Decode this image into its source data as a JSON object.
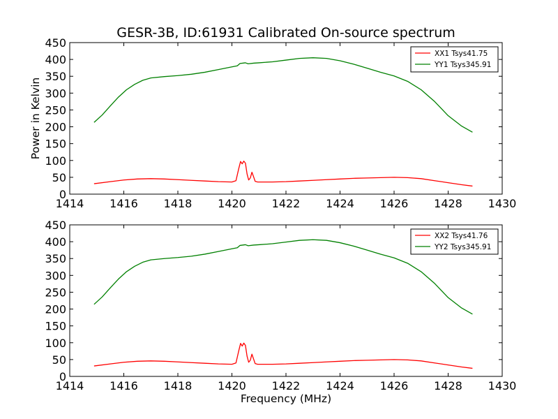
{
  "chart_data": [
    {
      "type": "line",
      "title": "GESR-3B, ID:61931 Calibrated On-source spectrum",
      "xlabel": "",
      "ylabel": "Power in Kelvin",
      "xlim": [
        1414,
        1430
      ],
      "ylim": [
        0,
        450
      ],
      "xticks": [
        "1414",
        "1416",
        "1418",
        "1420",
        "1422",
        "1424",
        "1426",
        "1428",
        "1430"
      ],
      "yticks": [
        "0",
        "50",
        "100",
        "150",
        "200",
        "250",
        "300",
        "350",
        "400",
        "450"
      ],
      "legend_position": "top-right",
      "series": [
        {
          "name": "XX1 Tsys41.75",
          "color": "#ff0000",
          "points": [
            [
              1414.9,
              31
            ],
            [
              1415.5,
              37
            ],
            [
              1416.0,
              42
            ],
            [
              1416.5,
              45
            ],
            [
              1417.0,
              46
            ],
            [
              1417.5,
              45
            ],
            [
              1418.0,
              43
            ],
            [
              1418.5,
              41
            ],
            [
              1419.0,
              39
            ],
            [
              1419.5,
              37
            ],
            [
              1420.0,
              36
            ],
            [
              1420.15,
              40
            ],
            [
              1420.25,
              75
            ],
            [
              1420.32,
              97
            ],
            [
              1420.38,
              90
            ],
            [
              1420.44,
              98
            ],
            [
              1420.5,
              92
            ],
            [
              1420.56,
              60
            ],
            [
              1420.62,
              42
            ],
            [
              1420.68,
              48
            ],
            [
              1420.74,
              65
            ],
            [
              1420.8,
              52
            ],
            [
              1420.86,
              38
            ],
            [
              1420.95,
              36
            ],
            [
              1421.5,
              36
            ],
            [
              1422.0,
              37
            ],
            [
              1422.5,
              39
            ],
            [
              1423.0,
              41
            ],
            [
              1423.5,
              43
            ],
            [
              1424.0,
              45
            ],
            [
              1424.5,
              47
            ],
            [
              1425.0,
              48
            ],
            [
              1425.5,
              49
            ],
            [
              1426.0,
              50
            ],
            [
              1426.5,
              49
            ],
            [
              1427.0,
              46
            ],
            [
              1427.5,
              40
            ],
            [
              1428.0,
              34
            ],
            [
              1428.5,
              28
            ],
            [
              1428.9,
              24
            ]
          ]
        },
        {
          "name": "YY1 Tsys345.91",
          "color": "#008000",
          "points": [
            [
              1414.9,
              213
            ],
            [
              1415.2,
              235
            ],
            [
              1415.5,
              262
            ],
            [
              1415.8,
              288
            ],
            [
              1416.1,
              310
            ],
            [
              1416.4,
              326
            ],
            [
              1416.7,
              338
            ],
            [
              1417.0,
              345
            ],
            [
              1417.5,
              349
            ],
            [
              1418.0,
              352
            ],
            [
              1418.5,
              356
            ],
            [
              1419.0,
              362
            ],
            [
              1419.5,
              370
            ],
            [
              1420.0,
              378
            ],
            [
              1420.2,
              381
            ],
            [
              1420.3,
              388
            ],
            [
              1420.5,
              390
            ],
            [
              1420.6,
              387
            ],
            [
              1420.8,
              389
            ],
            [
              1421.0,
              390
            ],
            [
              1421.5,
              393
            ],
            [
              1422.0,
              398
            ],
            [
              1422.5,
              403
            ],
            [
              1423.0,
              405
            ],
            [
              1423.5,
              403
            ],
            [
              1424.0,
              396
            ],
            [
              1424.5,
              386
            ],
            [
              1425.0,
              374
            ],
            [
              1425.5,
              362
            ],
            [
              1426.0,
              351
            ],
            [
              1426.5,
              335
            ],
            [
              1427.0,
              310
            ],
            [
              1427.5,
              275
            ],
            [
              1428.0,
              233
            ],
            [
              1428.5,
              202
            ],
            [
              1428.9,
              184
            ]
          ]
        }
      ]
    },
    {
      "type": "line",
      "title": "",
      "xlabel": "Frequency (MHz)",
      "ylabel": "",
      "xlim": [
        1414,
        1430
      ],
      "ylim": [
        0,
        450
      ],
      "xticks": [
        "1414",
        "1416",
        "1418",
        "1420",
        "1422",
        "1424",
        "1426",
        "1428",
        "1430"
      ],
      "yticks": [
        "0",
        "50",
        "100",
        "150",
        "200",
        "250",
        "300",
        "350",
        "400",
        "450"
      ],
      "legend_position": "top-right",
      "series": [
        {
          "name": "XX2 Tsys41.76",
          "color": "#ff0000",
          "points": [
            [
              1414.9,
              31
            ],
            [
              1415.5,
              37
            ],
            [
              1416.0,
              42
            ],
            [
              1416.5,
              45
            ],
            [
              1417.0,
              46
            ],
            [
              1417.5,
              45
            ],
            [
              1418.0,
              43
            ],
            [
              1418.5,
              41
            ],
            [
              1419.0,
              39
            ],
            [
              1419.5,
              37
            ],
            [
              1420.0,
              36
            ],
            [
              1420.15,
              40
            ],
            [
              1420.25,
              75
            ],
            [
              1420.32,
              98
            ],
            [
              1420.38,
              90
            ],
            [
              1420.44,
              99
            ],
            [
              1420.5,
              92
            ],
            [
              1420.56,
              60
            ],
            [
              1420.62,
              42
            ],
            [
              1420.68,
              48
            ],
            [
              1420.74,
              66
            ],
            [
              1420.8,
              52
            ],
            [
              1420.86,
              38
            ],
            [
              1420.95,
              36
            ],
            [
              1421.5,
              36
            ],
            [
              1422.0,
              37
            ],
            [
              1422.5,
              39
            ],
            [
              1423.0,
              41
            ],
            [
              1423.5,
              43
            ],
            [
              1424.0,
              45
            ],
            [
              1424.5,
              47
            ],
            [
              1425.0,
              48
            ],
            [
              1425.5,
              49
            ],
            [
              1426.0,
              50
            ],
            [
              1426.5,
              49
            ],
            [
              1427.0,
              46
            ],
            [
              1427.5,
              40
            ],
            [
              1428.0,
              34
            ],
            [
              1428.5,
              28
            ],
            [
              1428.9,
              24
            ]
          ]
        },
        {
          "name": "YY2 Tsys345.91",
          "color": "#008000",
          "points": [
            [
              1414.9,
              214
            ],
            [
              1415.2,
              236
            ],
            [
              1415.5,
              263
            ],
            [
              1415.8,
              289
            ],
            [
              1416.1,
              311
            ],
            [
              1416.4,
              327
            ],
            [
              1416.7,
              339
            ],
            [
              1417.0,
              346
            ],
            [
              1417.5,
              350
            ],
            [
              1418.0,
              353
            ],
            [
              1418.5,
              357
            ],
            [
              1419.0,
              363
            ],
            [
              1419.5,
              371
            ],
            [
              1420.0,
              379
            ],
            [
              1420.2,
              382
            ],
            [
              1420.3,
              389
            ],
            [
              1420.5,
              391
            ],
            [
              1420.6,
              388
            ],
            [
              1420.8,
              390
            ],
            [
              1421.0,
              391
            ],
            [
              1421.5,
              394
            ],
            [
              1422.0,
              399
            ],
            [
              1422.5,
              404
            ],
            [
              1423.0,
              406
            ],
            [
              1423.5,
              404
            ],
            [
              1424.0,
              397
            ],
            [
              1424.5,
              387
            ],
            [
              1425.0,
              375
            ],
            [
              1425.5,
              363
            ],
            [
              1426.0,
              352
            ],
            [
              1426.5,
              336
            ],
            [
              1427.0,
              311
            ],
            [
              1427.5,
              276
            ],
            [
              1428.0,
              234
            ],
            [
              1428.5,
              203
            ],
            [
              1428.9,
              185
            ]
          ]
        }
      ]
    }
  ]
}
